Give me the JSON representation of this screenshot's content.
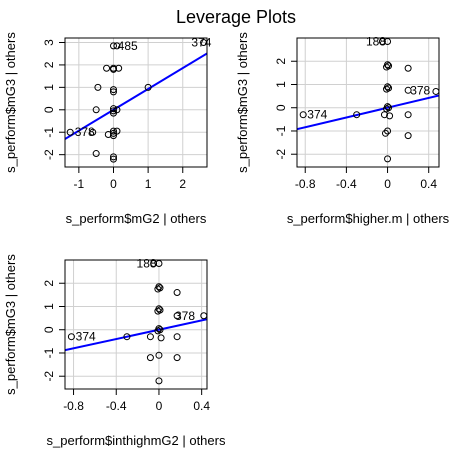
{
  "figure": {
    "title": "Leverage Plots"
  },
  "chart_data": [
    {
      "type": "scatter",
      "title": "",
      "xlabel": "s_perform$mG2 | others",
      "ylabel": "s_perform$mG3 | others",
      "xlim": [
        -1.4,
        2.7
      ],
      "ylim": [
        -2.55,
        3.2
      ],
      "xticks": [
        -1,
        0,
        1,
        2
      ],
      "yticks": [
        -2,
        -1,
        0,
        1,
        2,
        3
      ],
      "grid": true,
      "points": [
        {
          "x": -1.25,
          "y": -1.0
        },
        {
          "x": -0.6,
          "y": -1.0
        },
        {
          "x": -0.5,
          "y": 0.0
        },
        {
          "x": -0.5,
          "y": -1.95
        },
        {
          "x": -0.45,
          "y": 1.0
        },
        {
          "x": -0.2,
          "y": 1.85
        },
        {
          "x": -0.15,
          "y": -1.1
        },
        {
          "x": 0.0,
          "y": 2.85
        },
        {
          "x": 0.0,
          "y": 1.85
        },
        {
          "x": 0.0,
          "y": 1.8
        },
        {
          "x": 0.0,
          "y": 0.9
        },
        {
          "x": 0.0,
          "y": 0.8
        },
        {
          "x": 0.0,
          "y": 0.05
        },
        {
          "x": 0.0,
          "y": -0.05
        },
        {
          "x": 0.0,
          "y": -0.15
        },
        {
          "x": 0.0,
          "y": -0.95
        },
        {
          "x": 0.0,
          "y": -1.05
        },
        {
          "x": 0.0,
          "y": -1.15
        },
        {
          "x": 0.0,
          "y": -2.1
        },
        {
          "x": 0.0,
          "y": -2.2
        },
        {
          "x": 0.1,
          "y": 0.0
        },
        {
          "x": 0.1,
          "y": -0.95
        },
        {
          "x": 0.1,
          "y": 2.85
        },
        {
          "x": 0.15,
          "y": 1.85
        },
        {
          "x": 1.0,
          "y": 1.0
        },
        {
          "x": 2.6,
          "y": 3.0
        }
      ],
      "labels": [
        {
          "text": "485",
          "x": 0.12,
          "y": 2.85
        },
        {
          "text": "374",
          "x": 2.25,
          "y": 3.0
        },
        {
          "text": "378",
          "x": -1.12,
          "y": -1.0
        }
      ],
      "fit": {
        "slope": 0.93,
        "intercept": 0.0
      }
    },
    {
      "type": "scatter",
      "title": "",
      "xlabel": "s_perform$higher.m | others",
      "ylabel": "s_perform$mG3 | others",
      "xlim": [
        -0.88,
        0.5
      ],
      "ylim": [
        -2.55,
        3.0
      ],
      "xticks": [
        -0.8,
        -0.4,
        0.0,
        0.4
      ],
      "yticks": [
        -2,
        -1,
        0,
        1,
        2
      ],
      "grid": true,
      "points": [
        {
          "x": -0.82,
          "y": -0.3
        },
        {
          "x": -0.3,
          "y": -0.3
        },
        {
          "x": 0.0,
          "y": 2.85
        },
        {
          "x": -0.05,
          "y": 2.85
        },
        {
          "x": 0.0,
          "y": 1.85
        },
        {
          "x": 0.01,
          "y": 1.8
        },
        {
          "x": -0.01,
          "y": 1.75
        },
        {
          "x": 0.0,
          "y": 0.9
        },
        {
          "x": 0.01,
          "y": 0.85
        },
        {
          "x": -0.01,
          "y": 0.8
        },
        {
          "x": 0.0,
          "y": 0.05
        },
        {
          "x": 0.01,
          "y": 0.0
        },
        {
          "x": -0.01,
          "y": -0.05
        },
        {
          "x": -0.03,
          "y": -0.3
        },
        {
          "x": 0.02,
          "y": -0.35
        },
        {
          "x": 0.0,
          "y": -1.0
        },
        {
          "x": -0.02,
          "y": -1.1
        },
        {
          "x": 0.0,
          "y": -2.2
        },
        {
          "x": 0.2,
          "y": 1.7
        },
        {
          "x": 0.2,
          "y": 0.75
        },
        {
          "x": 0.2,
          "y": -0.3
        },
        {
          "x": 0.2,
          "y": -1.2
        },
        {
          "x": 0.47,
          "y": 0.7
        }
      ],
      "labels": [
        {
          "text": "188",
          "x": -0.21,
          "y": 2.85
        },
        {
          "text": "374",
          "x": -0.78,
          "y": -0.3
        },
        {
          "text": "378",
          "x": 0.22,
          "y": 0.75
        }
      ],
      "fit": {
        "slope": 1.05,
        "intercept": 0.0
      }
    },
    {
      "type": "scatter",
      "title": "",
      "xlabel": "s_perform$inthighmG2 | others",
      "ylabel": "s_perform$mG3 | others",
      "xlim": [
        -0.88,
        0.45
      ],
      "ylim": [
        -2.55,
        3.0
      ],
      "xticks": [
        -0.8,
        -0.4,
        0.0,
        0.4
      ],
      "yticks": [
        -2,
        -1,
        0,
        1,
        2
      ],
      "grid": true,
      "points": [
        {
          "x": -0.82,
          "y": -0.3
        },
        {
          "x": -0.3,
          "y": -0.3
        },
        {
          "x": 0.0,
          "y": 2.85
        },
        {
          "x": -0.05,
          "y": 2.85
        },
        {
          "x": 0.0,
          "y": 1.85
        },
        {
          "x": 0.01,
          "y": 1.8
        },
        {
          "x": -0.01,
          "y": 1.75
        },
        {
          "x": 0.0,
          "y": 0.9
        },
        {
          "x": 0.01,
          "y": 0.85
        },
        {
          "x": -0.01,
          "y": 0.8
        },
        {
          "x": 0.0,
          "y": 0.05
        },
        {
          "x": 0.01,
          "y": 0.0
        },
        {
          "x": -0.01,
          "y": -0.05
        },
        {
          "x": -0.08,
          "y": -0.3
        },
        {
          "x": 0.02,
          "y": -0.35
        },
        {
          "x": -0.08,
          "y": -1.2
        },
        {
          "x": 0.0,
          "y": -1.1
        },
        {
          "x": 0.0,
          "y": -2.2
        },
        {
          "x": 0.17,
          "y": 1.6
        },
        {
          "x": 0.17,
          "y": 0.6
        },
        {
          "x": 0.17,
          "y": -0.3
        },
        {
          "x": 0.17,
          "y": -1.2
        },
        {
          "x": 0.42,
          "y": 0.6
        }
      ],
      "labels": [
        {
          "text": "188",
          "x": -0.21,
          "y": 2.85
        },
        {
          "text": "374",
          "x": -0.78,
          "y": -0.3
        },
        {
          "text": "378",
          "x": 0.15,
          "y": 0.6
        }
      ],
      "fit": {
        "slope": 1.0,
        "intercept": 0.0
      }
    }
  ]
}
